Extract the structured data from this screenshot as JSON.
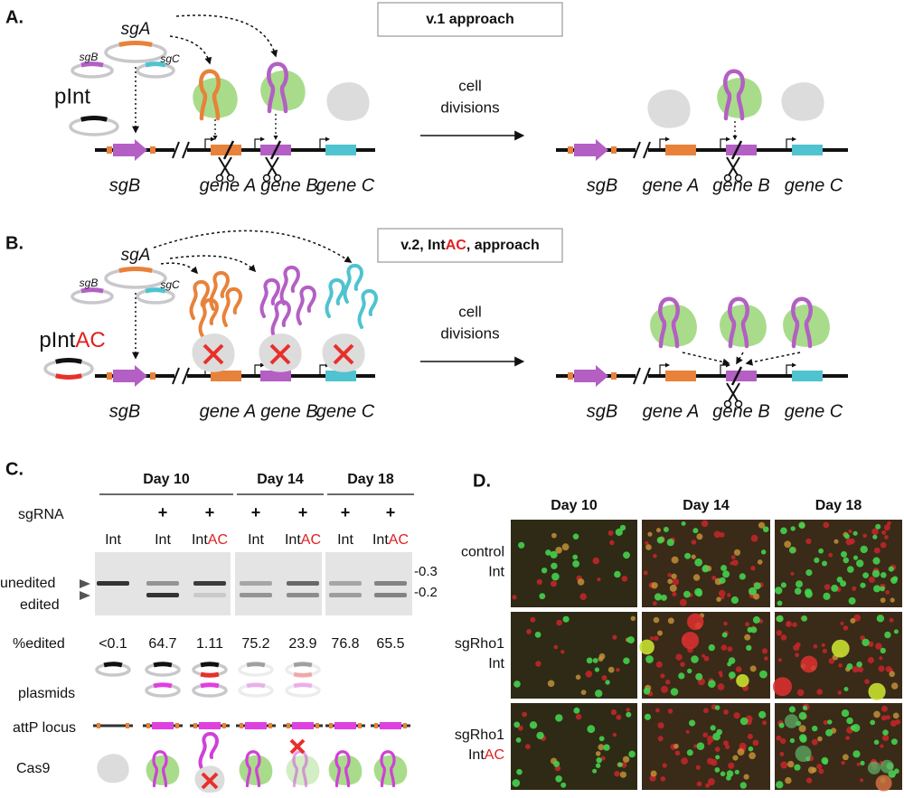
{
  "panel_a": {
    "label": "A.",
    "approach": "v.1 approach",
    "sg_a": "sgA",
    "sg_b": "sgB",
    "sg_c": "sgC",
    "p_int": "pInt",
    "transition": [
      "cell",
      "divisions"
    ],
    "genes_before": [
      "sgB",
      "gene A",
      "gene B",
      "gene C"
    ],
    "genes_after": [
      "sgB",
      "gene A",
      "gene B",
      "gene C"
    ]
  },
  "panel_b": {
    "label": "B.",
    "approach": [
      "v.2, Int",
      "AC",
      ", approach"
    ],
    "sg_a": "sgA",
    "sg_b": "sgB",
    "sg_c": "sgC",
    "p_int": [
      "pInt",
      "AC"
    ],
    "transition": [
      "cell",
      "divisions"
    ],
    "genes_before": [
      "sgB",
      "gene A",
      "gene B",
      "gene C"
    ],
    "genes_after": [
      "sgB",
      "gene A",
      "gene B",
      "gene C"
    ]
  },
  "panel_c": {
    "label": "C.",
    "days": [
      "Day 10",
      "Day 14",
      "Day 18"
    ],
    "sgrna_label": "sgRNA",
    "sgrna": [
      "+",
      "+",
      "+",
      "+",
      "+",
      "+"
    ],
    "lanes": [
      [
        "Int"
      ],
      [
        "Int"
      ],
      [
        "Int",
        "AC"
      ],
      [
        "Int"
      ],
      [
        "Int",
        "AC"
      ],
      [
        "Int"
      ],
      [
        "Int",
        "AC"
      ]
    ],
    "band_labels": [
      "unedited",
      "edited"
    ],
    "size_markers": [
      "-0.3",
      "-0.2"
    ],
    "edited_label": "%edited",
    "edited": [
      "<0.1",
      "64.7",
      "1.11",
      "75.2",
      "23.9",
      "76.8",
      "65.5"
    ],
    "row_labels": [
      "plasmids",
      "attP locus",
      "Cas9"
    ]
  },
  "panel_d": {
    "label": "D.",
    "days": [
      "Day 10",
      "Day 14",
      "Day 18"
    ],
    "rows": [
      {
        "top": "control",
        "bottom": [
          "Int"
        ]
      },
      {
        "top": "sgRho1",
        "bottom": [
          "Int"
        ]
      },
      {
        "top": "sgRho1",
        "bottom": [
          "Int",
          "AC"
        ]
      }
    ]
  }
}
